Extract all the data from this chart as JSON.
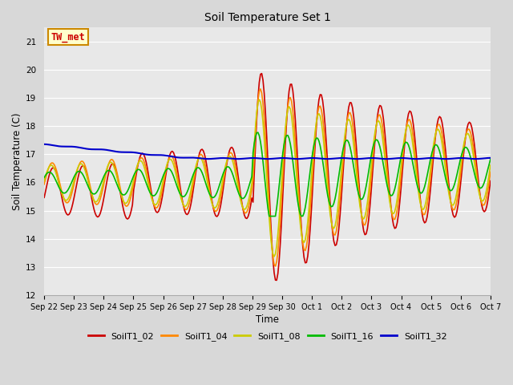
{
  "title": "Soil Temperature Set 1",
  "xlabel": "Time",
  "ylabel": "Soil Temperature (C)",
  "ylim": [
    12.0,
    21.5
  ],
  "yticks": [
    12.0,
    13.0,
    14.0,
    15.0,
    16.0,
    17.0,
    18.0,
    19.0,
    20.0,
    21.0
  ],
  "annotation_text": "TW_met",
  "annotation_color": "#cc0000",
  "annotation_bg": "#ffffcc",
  "annotation_border": "#cc8800",
  "fig_bg": "#d8d8d8",
  "plot_bg": "#e8e8e8",
  "legend_labels": [
    "SoilT1_02",
    "SoilT1_04",
    "SoilT1_08",
    "SoilT1_16",
    "SoilT1_32"
  ],
  "line_colors": [
    "#cc0000",
    "#ff8800",
    "#cccc00",
    "#00bb00",
    "#0000cc"
  ],
  "line_widths": [
    1.2,
    1.2,
    1.2,
    1.2,
    1.5
  ],
  "date_labels": [
    "Sep 22",
    "Sep 23",
    "Sep 24",
    "Sep 25",
    "Sep 26",
    "Sep 27",
    "Sep 28",
    "Sep 29",
    "Sep 30",
    "Oct 1",
    "Oct 2",
    "Oct 3",
    "Oct 4",
    "Oct 5",
    "Oct 6",
    "Oct 7"
  ],
  "figsize": [
    6.4,
    4.8
  ],
  "dpi": 100
}
